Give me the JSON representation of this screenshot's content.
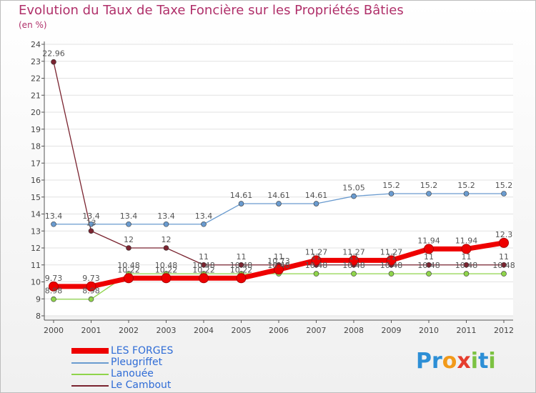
{
  "title": "Evolution du Taux de Taxe Foncière sur les Propriétés Bâties",
  "subtitle": "(en %)",
  "logo": {
    "p": "Pr",
    "o": "o",
    "x": "x",
    "i": "i",
    "t": "t",
    "i2": "i"
  },
  "chart_data": {
    "type": "line",
    "title": "Evolution du Taux de Taxe Foncière sur les Propriétés Bâties",
    "ylabel": "(en %)",
    "xlabel": "",
    "categories": [
      "2000",
      "2001",
      "2002",
      "2003",
      "2004",
      "2005",
      "2006",
      "2007",
      "2008",
      "2009",
      "2010",
      "2011",
      "2012"
    ],
    "ylim": [
      8,
      24
    ],
    "yticks": [
      "8",
      "9",
      "10",
      "11",
      "12",
      "13",
      "14",
      "15",
      "16",
      "17",
      "18",
      "19",
      "20",
      "21",
      "22",
      "23",
      "24"
    ],
    "legend_position": "bottom-left",
    "series": [
      {
        "name": "Le Cambout",
        "color": "#7a2430",
        "width": 1.3,
        "values": [
          22.96,
          13,
          12,
          12,
          11,
          11,
          11,
          11,
          11,
          11,
          11,
          11,
          11
        ],
        "labels": [
          "22.96",
          "13",
          "12",
          "12",
          "11",
          "11",
          "11",
          "11",
          "11",
          "11",
          "11",
          "11",
          "11"
        ]
      },
      {
        "name": "Lanouée",
        "color": "#8fd44b",
        "width": 1.3,
        "values": [
          8.98,
          8.98,
          10.48,
          10.48,
          10.48,
          10.48,
          10.48,
          10.48,
          10.48,
          10.48,
          10.48,
          10.48,
          10.48
        ],
        "labels": [
          "8.98",
          "8.98",
          "10.48",
          "10.48",
          "10.48",
          "10.48",
          "10.48",
          "10.48",
          "10.48",
          "10.48",
          "10.48",
          "10.48",
          "10.48"
        ]
      },
      {
        "name": "Pleugriffet",
        "color": "#6a9bcf",
        "width": 1.3,
        "values": [
          13.4,
          13.4,
          13.4,
          13.4,
          13.4,
          14.61,
          14.61,
          14.61,
          15.05,
          15.2,
          15.2,
          15.2,
          15.2
        ],
        "labels": [
          "13.4",
          "13.4",
          "13.4",
          "13.4",
          "13.4",
          "14.61",
          "14.61",
          "14.61",
          "15.05",
          "15.2",
          "15.2",
          "15.2",
          "15.2"
        ]
      },
      {
        "name": "LES FORGES",
        "color": "#ee0000",
        "width": 7,
        "values": [
          9.73,
          9.73,
          10.22,
          10.22,
          10.22,
          10.22,
          10.73,
          11.27,
          11.27,
          11.27,
          11.94,
          11.94,
          12.3
        ],
        "labels": [
          "9.73",
          "9.73",
          "10.22",
          "10.22",
          "10.22",
          "10.22",
          "10.73",
          "11.27",
          "11.27",
          "11.27",
          "11.94",
          "11.94",
          "12.3"
        ]
      }
    ]
  },
  "legend": [
    {
      "name": "LES FORGES",
      "color": "#ee0000"
    },
    {
      "name": "Pleugriffet",
      "color": "#6a9bcf"
    },
    {
      "name": "Lanouée",
      "color": "#8fd44b"
    },
    {
      "name": "Le Cambout",
      "color": "#7a2430"
    }
  ]
}
